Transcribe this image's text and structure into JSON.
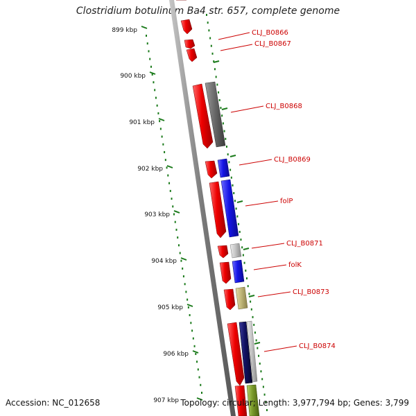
{
  "title": "Clostridium botulinum Ba4 str. 657, complete genome",
  "accession": "Accession: NC_012658",
  "topology": "Topology: circular; Length: 3,977,794 bp; Genes: 3,799",
  "colors": {
    "backbone": "#8a8a8a",
    "tick": "#1a7a1a",
    "label": "#cc0000",
    "cds": "#ee0000",
    "cog_blue": "#1515e6",
    "cog_gray": "#6b6b6b",
    "cog_lightgray": "#c6c6c6",
    "cog_khaki": "#c2b87a",
    "cog_navy": "#101060",
    "cog_olive": "#7a9a2a"
  },
  "scale_ticks": [
    "899 kbp",
    "900 kbp",
    "901 kbp",
    "902 kbp",
    "903 kbp",
    "904 kbp",
    "905 kbp",
    "906 kbp",
    "907 kbp"
  ],
  "gene_labels": [
    "CLJ_B0866",
    "CLJ_B0867",
    "CLJ_B0868",
    "CLJ_B0869",
    "folP",
    "CLJ_B0871",
    "folK",
    "CLJ_B0873",
    "CLJ_B0874"
  ]
}
